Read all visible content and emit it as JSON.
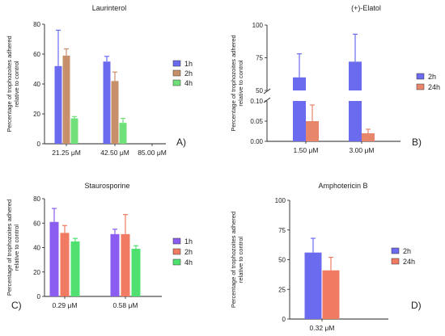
{
  "chart_data": [
    {
      "id": "A",
      "type": "bar",
      "title": "Laurinterol",
      "panel_label": "A)",
      "ylabel": [
        "Percentage of trophozoites adhered",
        "relative to control"
      ],
      "ylim": [
        0,
        80
      ],
      "yticks": [
        0,
        20,
        40,
        60,
        80
      ],
      "categories": [
        "21.25 μM",
        "42.50 μM",
        "85.00 μM"
      ],
      "series": [
        {
          "name": "1h",
          "color": "#6b6bf0",
          "values": [
            52,
            55,
            null
          ],
          "errors": [
            24,
            3.5,
            null
          ]
        },
        {
          "name": "2h",
          "color": "#c8906a",
          "values": [
            59,
            42,
            null
          ],
          "errors": [
            4.5,
            6,
            null
          ]
        },
        {
          "name": "4h",
          "color": "#6fe07a",
          "values": [
            17,
            14,
            null
          ],
          "errors": [
            1.2,
            3,
            null
          ]
        }
      ]
    },
    {
      "id": "B",
      "type": "bar",
      "title": "(+)-Elatol",
      "panel_label": "B)",
      "ylabel": [
        "Percentage of trophozoites adhered",
        "relative to control"
      ],
      "axis_break": true,
      "upper_ylim": [
        50,
        100
      ],
      "upper_yticks": [
        50,
        75,
        100
      ],
      "lower_ylim": [
        0,
        0.1
      ],
      "lower_yticks": [
        "0.00",
        "0.05",
        "0.10"
      ],
      "categories": [
        "1.50 μM",
        "3.00 μM"
      ],
      "series": [
        {
          "name": "2h",
          "color": "#6b6bf0",
          "values": [
            60,
            72
          ],
          "errors": [
            18,
            21
          ]
        },
        {
          "name": "24h",
          "color": "#e8866c",
          "values": [
            0.05,
            0.02
          ],
          "errors": [
            0.04,
            0.01
          ]
        }
      ]
    },
    {
      "id": "C",
      "type": "bar",
      "title": "Staurosporine",
      "panel_label": "C)",
      "ylabel": [
        "Percentage of trophozoites adhered",
        "relative to control"
      ],
      "ylim": [
        0,
        80
      ],
      "yticks": [
        0,
        20,
        40,
        60,
        80
      ],
      "categories": [
        "0.29 μM",
        "0.58 μM"
      ],
      "series": [
        {
          "name": "1h",
          "color": "#8a5cf0",
          "values": [
            61,
            51
          ],
          "errors": [
            11,
            4
          ]
        },
        {
          "name": "2h",
          "color": "#f07a62",
          "values": [
            52,
            51
          ],
          "errors": [
            6,
            16
          ]
        },
        {
          "name": "4h",
          "color": "#4fe070",
          "values": [
            45,
            39
          ],
          "errors": [
            2.5,
            2.5
          ]
        }
      ]
    },
    {
      "id": "D",
      "type": "bar",
      "title": "Amphotericin B",
      "panel_label": "D)",
      "ylabel": [
        "Percentage of trophozoites adhered",
        "relative to control"
      ],
      "ylim": [
        0,
        100
      ],
      "yticks": [
        0,
        25,
        50,
        75,
        100
      ],
      "categories": [
        "0.32 μM"
      ],
      "series": [
        {
          "name": "2h",
          "color": "#6b6bf0",
          "values": [
            56
          ],
          "errors": [
            12
          ]
        },
        {
          "name": "24h",
          "color": "#f07a62",
          "values": [
            41
          ],
          "errors": [
            11
          ]
        }
      ]
    }
  ]
}
